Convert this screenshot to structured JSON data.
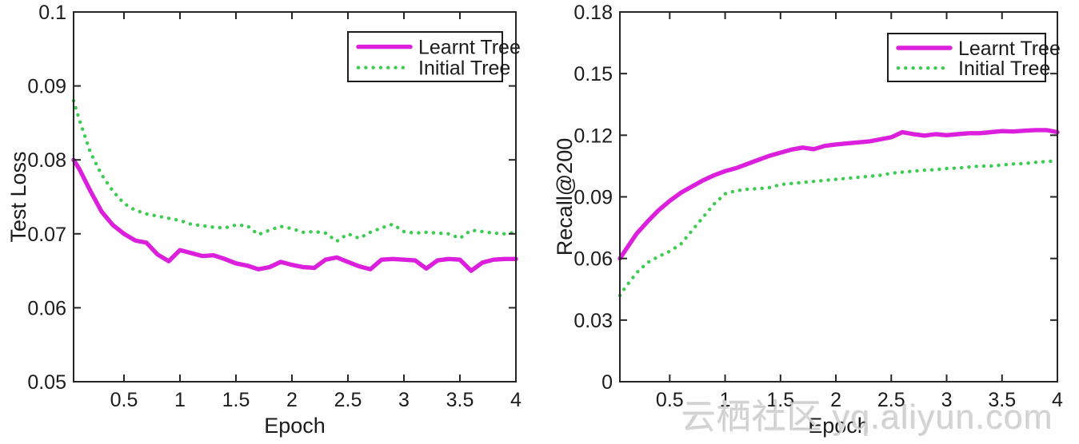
{
  "watermark": {
    "text": "云栖社区 yq.aliyun.com"
  },
  "colors": {
    "learnt_tree": "#DC1FDC",
    "initial_tree": "#3DCC52",
    "axis": "#262626",
    "text": "#1c1c1c",
    "legend_border": "#1c1c1c",
    "background": "#fefefe"
  },
  "chart_data": [
    {
      "type": "line",
      "title": "",
      "xlabel": "Epoch",
      "ylabel": "Test Loss",
      "xlim": [
        0.05,
        4.0
      ],
      "ylim": [
        0.05,
        0.1
      ],
      "xticks": [
        0.5,
        1,
        1.5,
        2,
        2.5,
        3,
        3.5,
        4
      ],
      "xtick_labels": [
        "0.5",
        "1",
        "1.5",
        "2",
        "2.5",
        "3",
        "3.5",
        "4"
      ],
      "yticks": [
        0.05,
        0.06,
        0.07,
        0.08,
        0.09,
        0.1
      ],
      "ytick_labels": [
        "0.05",
        "0.06",
        "0.07",
        "0.08",
        "0.09",
        "0.1"
      ],
      "grid": false,
      "legend_position": "top-right",
      "x": [
        0.05,
        0.1,
        0.2,
        0.3,
        0.4,
        0.5,
        0.6,
        0.7,
        0.8,
        0.9,
        1.0,
        1.1,
        1.2,
        1.3,
        1.4,
        1.5,
        1.6,
        1.7,
        1.8,
        1.9,
        2.0,
        2.1,
        2.2,
        2.3,
        2.4,
        2.5,
        2.6,
        2.7,
        2.8,
        2.9,
        3.0,
        3.1,
        3.2,
        3.3,
        3.4,
        3.5,
        3.6,
        3.7,
        3.8,
        3.9,
        4.0
      ],
      "series": [
        {
          "name": "Learnt Tree",
          "style": "solid",
          "color": "#DC1FDC",
          "values": [
            0.08,
            0.0788,
            0.0758,
            0.073,
            0.0712,
            0.07,
            0.0691,
            0.0688,
            0.0672,
            0.0663,
            0.0678,
            0.0674,
            0.067,
            0.0671,
            0.0666,
            0.066,
            0.0657,
            0.0652,
            0.0655,
            0.0662,
            0.0658,
            0.0655,
            0.0654,
            0.0665,
            0.0668,
            0.0662,
            0.0656,
            0.0652,
            0.0665,
            0.0666,
            0.0665,
            0.0664,
            0.0653,
            0.0664,
            0.0666,
            0.0665,
            0.065,
            0.0661,
            0.0665,
            0.0666,
            0.0666
          ]
        },
        {
          "name": "Initial Tree",
          "style": "dotted",
          "color": "#3DCC52",
          "values": [
            0.088,
            0.0855,
            0.081,
            0.078,
            0.0758,
            0.0741,
            0.0732,
            0.0727,
            0.0724,
            0.0721,
            0.0718,
            0.0713,
            0.0711,
            0.0709,
            0.0708,
            0.0712,
            0.0711,
            0.0699,
            0.0705,
            0.071,
            0.0707,
            0.0702,
            0.0703,
            0.0701,
            0.069,
            0.07,
            0.0694,
            0.0702,
            0.0708,
            0.0713,
            0.0703,
            0.0701,
            0.0702,
            0.0701,
            0.07,
            0.0694,
            0.0705,
            0.0703,
            0.0701,
            0.07,
            0.0702
          ]
        }
      ]
    },
    {
      "type": "line",
      "title": "",
      "xlabel": "Epoch",
      "ylabel": "Recall@200",
      "xlim": [
        0.05,
        4.0
      ],
      "ylim": [
        0,
        0.18
      ],
      "xticks": [
        0.5,
        1,
        1.5,
        2,
        2.5,
        3,
        3.5,
        4
      ],
      "xtick_labels": [
        "0.5",
        "1",
        "1.5",
        "2",
        "2.5",
        "3",
        "3.5",
        "4"
      ],
      "yticks": [
        0,
        0.03,
        0.06,
        0.09,
        0.12,
        0.15,
        0.18
      ],
      "ytick_labels": [
        "0",
        "0.03",
        "0.06",
        "0.09",
        "0.12",
        "0.15",
        "0.18"
      ],
      "grid": false,
      "legend_position": "top-right",
      "x": [
        0.05,
        0.1,
        0.2,
        0.3,
        0.4,
        0.5,
        0.6,
        0.7,
        0.8,
        0.9,
        1.0,
        1.1,
        1.2,
        1.3,
        1.4,
        1.5,
        1.6,
        1.7,
        1.8,
        1.9,
        2.0,
        2.1,
        2.2,
        2.3,
        2.4,
        2.5,
        2.6,
        2.7,
        2.8,
        2.9,
        3.0,
        3.1,
        3.2,
        3.3,
        3.4,
        3.5,
        3.6,
        3.7,
        3.8,
        3.9,
        4.0
      ],
      "series": [
        {
          "name": "Learnt Tree",
          "style": "solid",
          "color": "#DC1FDC",
          "values": [
            0.06,
            0.064,
            0.072,
            0.078,
            0.0835,
            0.088,
            0.092,
            0.095,
            0.098,
            0.1005,
            0.1025,
            0.104,
            0.106,
            0.108,
            0.11,
            0.1115,
            0.113,
            0.114,
            0.1132,
            0.1148,
            0.1155,
            0.116,
            0.1165,
            0.117,
            0.118,
            0.119,
            0.1215,
            0.1205,
            0.1198,
            0.1205,
            0.12,
            0.1205,
            0.121,
            0.121,
            0.1215,
            0.122,
            0.1218,
            0.1222,
            0.1225,
            0.1225,
            0.1215
          ]
        },
        {
          "name": "Initial Tree",
          "style": "dotted",
          "color": "#3DCC52",
          "values": [
            0.042,
            0.046,
            0.053,
            0.058,
            0.061,
            0.0635,
            0.067,
            0.0735,
            0.08,
            0.0865,
            0.0915,
            0.093,
            0.0937,
            0.094,
            0.0945,
            0.096,
            0.0965,
            0.097,
            0.0975,
            0.098,
            0.0985,
            0.099,
            0.0995,
            0.1,
            0.1005,
            0.1015,
            0.102,
            0.1025,
            0.103,
            0.1032,
            0.1038,
            0.104,
            0.1045,
            0.105,
            0.105,
            0.1055,
            0.106,
            0.1062,
            0.1068,
            0.1072,
            0.1075
          ]
        }
      ]
    }
  ]
}
